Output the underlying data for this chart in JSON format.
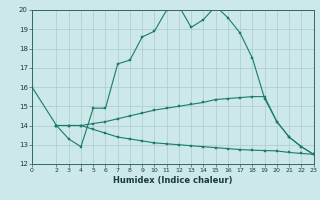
{
  "title": "",
  "xlabel": "Humidex (Indice chaleur)",
  "background_color": "#cce8e8",
  "grid_color": "#aacccc",
  "line_color": "#1a7a6e",
  "xlim": [
    0,
    23
  ],
  "ylim": [
    12,
    20
  ],
  "xticks": [
    0,
    2,
    3,
    4,
    5,
    6,
    7,
    8,
    9,
    10,
    11,
    12,
    13,
    14,
    15,
    16,
    17,
    18,
    19,
    20,
    21,
    22,
    23
  ],
  "yticks": [
    12,
    13,
    14,
    15,
    16,
    17,
    18,
    19,
    20
  ],
  "line1_x": [
    0,
    2,
    3,
    4,
    5,
    6,
    7,
    8,
    9,
    10,
    11,
    12,
    13,
    14,
    15,
    16,
    17,
    18,
    19,
    20,
    21,
    22,
    23
  ],
  "line1_y": [
    16.0,
    14.0,
    13.3,
    12.9,
    14.9,
    14.9,
    17.2,
    17.4,
    18.6,
    18.9,
    20.0,
    20.2,
    19.1,
    19.5,
    20.2,
    19.6,
    18.8,
    17.5,
    15.4,
    14.2,
    13.4,
    12.9,
    12.5
  ],
  "line2_x": [
    2,
    3,
    4,
    5,
    6,
    7,
    8,
    9,
    10,
    11,
    12,
    13,
    14,
    15,
    16,
    17,
    18,
    19,
    20,
    21,
    22,
    23
  ],
  "line2_y": [
    14.0,
    14.0,
    14.0,
    14.1,
    14.2,
    14.35,
    14.5,
    14.65,
    14.8,
    14.9,
    15.0,
    15.1,
    15.2,
    15.35,
    15.4,
    15.45,
    15.5,
    15.5,
    14.2,
    13.4,
    12.9,
    12.5
  ],
  "line3_x": [
    2,
    3,
    4,
    5,
    6,
    7,
    8,
    9,
    10,
    11,
    12,
    13,
    14,
    15,
    16,
    17,
    18,
    19,
    20,
    21,
    22,
    23
  ],
  "line3_y": [
    14.0,
    14.0,
    14.0,
    13.8,
    13.6,
    13.4,
    13.3,
    13.2,
    13.1,
    13.05,
    13.0,
    12.95,
    12.9,
    12.85,
    12.8,
    12.75,
    12.72,
    12.7,
    12.68,
    12.6,
    12.55,
    12.5
  ]
}
